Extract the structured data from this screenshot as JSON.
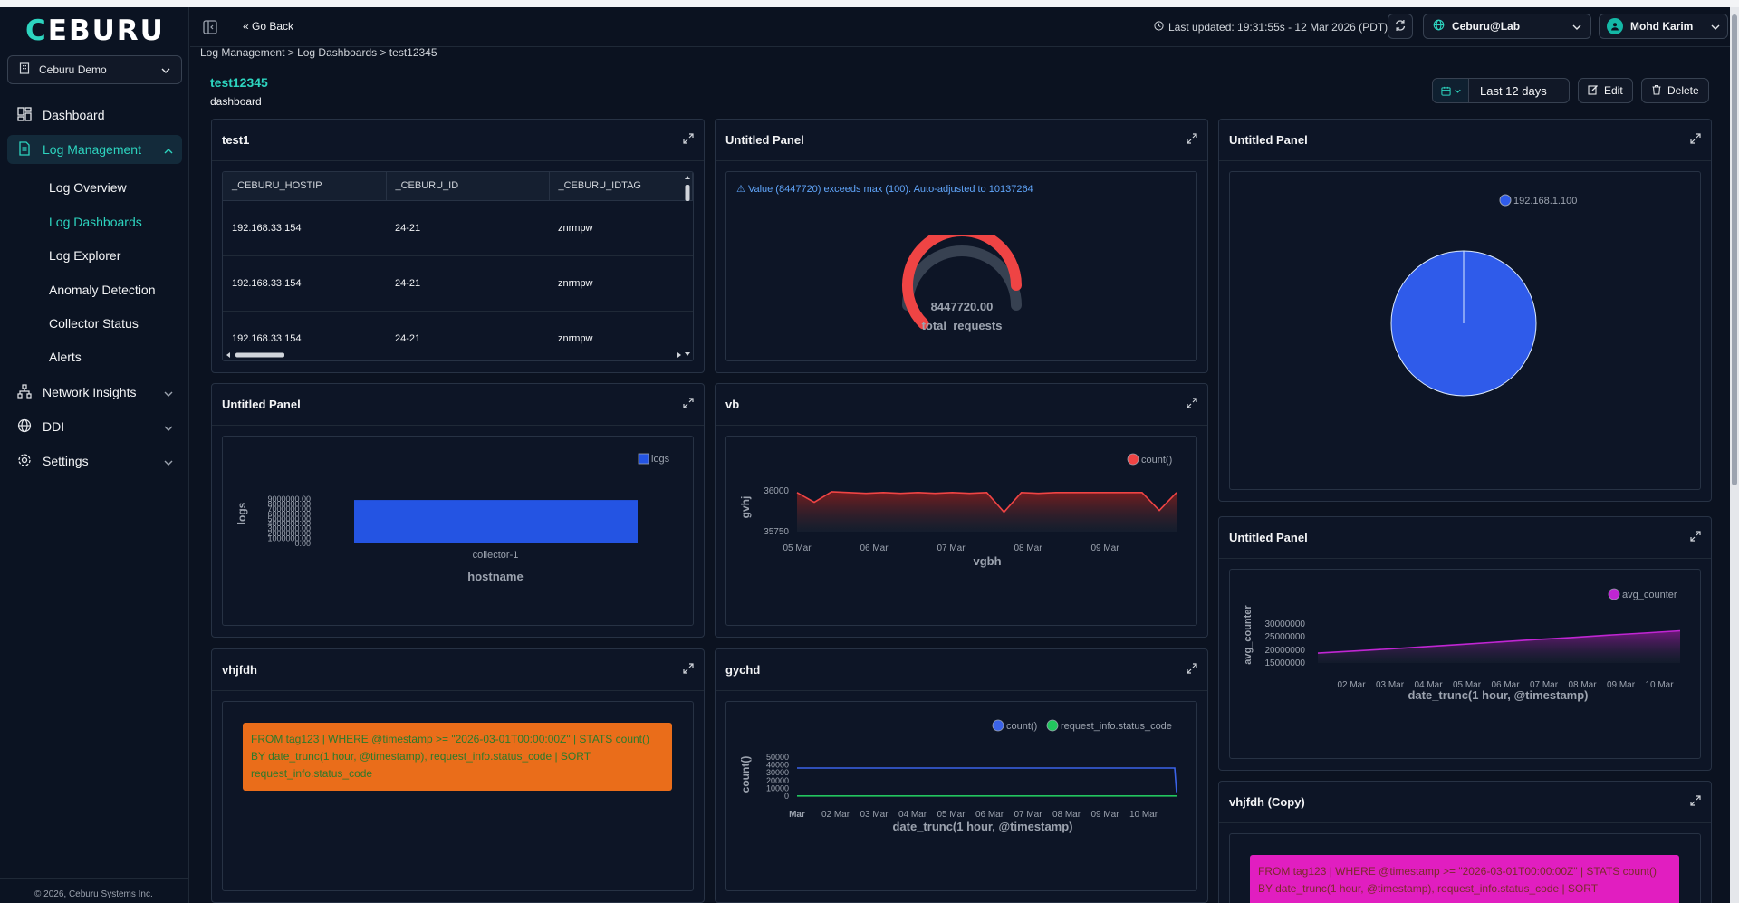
{
  "app": {
    "logo": "CEBURU",
    "org": "Ceburu Demo",
    "copyright": "© 2026, Ceburu Systems Inc."
  },
  "sidebar": {
    "items": [
      {
        "label": "Dashboard"
      },
      {
        "label": "Log Management"
      },
      {
        "label": "Network Insights"
      },
      {
        "label": "DDI"
      },
      {
        "label": "Settings"
      }
    ],
    "sub_items": [
      {
        "label": "Log Overview"
      },
      {
        "label": "Log Dashboards"
      },
      {
        "label": "Log Explorer"
      },
      {
        "label": "Anomaly Detection"
      },
      {
        "label": "Collector Status"
      },
      {
        "label": "Alerts"
      }
    ]
  },
  "topbar": {
    "go_back": "Go Back",
    "last_updated": "Last updated: 19:31:55s - 12 Mar 2026 (PDT)",
    "tenant": "Ceburu@Lab",
    "user": "Mohd Karim"
  },
  "breadcrumb": "Log Management > Log Dashboards > test12345",
  "dashboard": {
    "title": "test12345",
    "subtitle": "dashboard",
    "time_range": "Last 12 days",
    "edit_label": "Edit",
    "delete_label": "Delete"
  },
  "panels": {
    "test1": {
      "title": "test1",
      "columns": [
        "_CEBURU_HOSTIP",
        "_CEBURU_ID",
        "_CEBURU_IDTAG"
      ],
      "rows": [
        [
          "192.168.33.154",
          "24-21",
          "znrmpw"
        ],
        [
          "192.168.33.154",
          "24-21",
          "znrmpw"
        ],
        [
          "192.168.33.154",
          "24-21",
          "znrmpw"
        ]
      ]
    },
    "gauge": {
      "title": "Untitled Panel",
      "warning": "Value (8447720) exceeds max (100). Auto-adjusted to 10137264",
      "value_label": "8447720.00",
      "metric": "total_requests"
    },
    "pie": {
      "title": "Untitled Panel"
    },
    "bar": {
      "title": "Untitled Panel"
    },
    "vb": {
      "title": "vb"
    },
    "avg": {
      "title": "Untitled Panel"
    },
    "vhjfdh": {
      "title": "vhjfdh",
      "query": "FROM tag123 | WHERE @timestamp >= \"2026-03-01T00:00:00Z\" | STATS count() BY date_trunc(1 hour, @timestamp), request_info.status_code | SORT request_info.status_code"
    },
    "gychd": {
      "title": "gychd"
    },
    "vhjfdh_copy": {
      "title": "vhjfdh (Copy)",
      "query": "FROM tag123 | WHERE @timestamp >= \"2026-03-01T00:00:00Z\" | STATS count() BY date_trunc(1 hour, @timestamp), request_info.status_code | SORT"
    }
  },
  "chart_data": [
    {
      "type": "gauge",
      "value": 8447720,
      "max": 10137264,
      "value_label": "8447720.00",
      "metric": "total_requests"
    },
    {
      "type": "pie",
      "series": [
        {
          "name": "192.168.1.100",
          "values": [
            100
          ]
        }
      ],
      "colors": [
        "#2f5bea"
      ]
    },
    {
      "type": "bar",
      "categories": [
        "collector-1"
      ],
      "series": [
        {
          "name": "logs",
          "values": [
            8800000
          ]
        }
      ],
      "xlabel": "hostname",
      "ylabel": "logs",
      "ytick_labels": [
        "9000000.00",
        "8000000.00",
        "7000000.00",
        "6000000.00",
        "5000000.00",
        "4000000.00",
        "3000000.00",
        "2000000.00",
        "1000000.00",
        "0.00"
      ],
      "ylim": [
        0,
        9000000
      ],
      "color": "#2454e3"
    },
    {
      "type": "area",
      "series": [
        {
          "name": "count()"
        }
      ],
      "xlabel": "vgbh",
      "ylabel": "gvhj",
      "ytick_labels": [
        "36000",
        "35750"
      ],
      "xtick_labels": [
        "05 Mar",
        "06 Mar",
        "07 Mar",
        "08 Mar",
        "09 Mar"
      ],
      "x": [
        "05 Mar",
        "05 Mar",
        "05 Mar",
        "05 Mar",
        "06 Mar",
        "06 Mar",
        "07 Mar",
        "07 Mar",
        "08 Mar",
        "08 Mar",
        "09 Mar",
        "09 Mar",
        "09 Mar",
        "09 Mar",
        "09 Mar",
        "10 Mar",
        "10 Mar",
        "10 Mar",
        "10 Mar",
        "10 Mar",
        "10 Mar",
        "10 Mar",
        "10 Mar"
      ],
      "y": [
        35990,
        35930,
        35995,
        35990,
        35985,
        35990,
        35985,
        35990,
        35985,
        35990,
        35985,
        35990,
        35870,
        35990,
        35985,
        35990,
        35990,
        35990,
        35990,
        35990,
        35990,
        35880,
        35990
      ],
      "color": "#ef4444"
    },
    {
      "type": "area",
      "series": [
        {
          "name": "avg_counter"
        }
      ],
      "xlabel": "date_trunc(1 hour, @timestamp)",
      "ylabel": "avg_counter",
      "ytick_labels": [
        "30000000",
        "25000000",
        "20000000",
        "15000000"
      ],
      "xtick_labels": [
        "02 Mar",
        "03 Mar",
        "04 Mar",
        "05 Mar",
        "06 Mar",
        "07 Mar",
        "08 Mar",
        "09 Mar",
        "10 Mar"
      ],
      "x": [
        "01 Mar",
        "02 Mar",
        "03 Mar",
        "04 Mar",
        "05 Mar",
        "06 Mar",
        "07 Mar",
        "08 Mar",
        "09 Mar",
        "10 Mar",
        "11 Mar"
      ],
      "y": [
        18800000,
        19600000,
        20400000,
        21300000,
        22200000,
        23100000,
        24000000,
        24800000,
        25700000,
        26500000,
        27400000
      ],
      "color": "#c026d3"
    },
    {
      "type": "line",
      "series": [
        {
          "name": "count()",
          "color": "#3b63e8"
        },
        {
          "name": "request_info.status_code",
          "color": "#22c55e"
        }
      ],
      "xlabel": "date_trunc(1 hour, @timestamp)",
      "ylabel": "count()",
      "ytick_labels": [
        "50000",
        "40000",
        "30000",
        "20000",
        "10000",
        "0"
      ],
      "xtick_labels": [
        "Mar",
        "02 Mar",
        "03 Mar",
        "04 Mar",
        "05 Mar",
        "06 Mar",
        "07 Mar",
        "08 Mar",
        "09 Mar",
        "10 Mar"
      ],
      "ylim": [
        0,
        50000
      ],
      "x": [
        "01 Mar",
        "10 Mar",
        "11 Mar"
      ],
      "values": {
        "count()": [
          36000,
          36000,
          5000
        ],
        "request_info.status_code": [
          200,
          200,
          200
        ]
      }
    }
  ]
}
